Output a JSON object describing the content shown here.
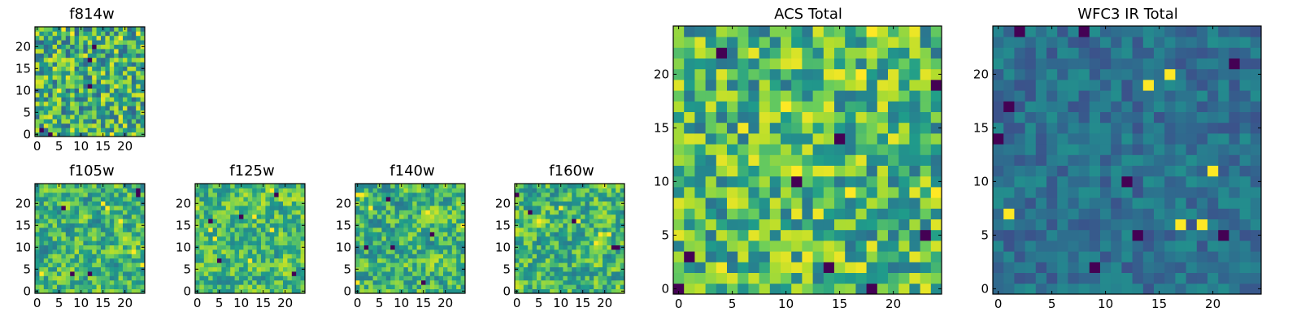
{
  "colormap": "viridis",
  "colors": {
    "dark": "#440154",
    "mid": "#21918c",
    "bright": "#fde725"
  },
  "chart_data": [
    {
      "id": "f814w",
      "type": "heatmap",
      "title": "f814w",
      "grid": [
        25,
        25
      ],
      "xlim": [
        0,
        24
      ],
      "ylim": [
        0,
        24
      ],
      "xticks": [
        0,
        5,
        10,
        15,
        20
      ],
      "yticks": [
        0,
        5,
        10,
        15,
        20
      ],
      "level": 0.66,
      "spread": 0.3,
      "seed": 814,
      "smooth": 0
    },
    {
      "id": "f105w",
      "type": "heatmap",
      "title": "f105w",
      "grid": [
        25,
        25
      ],
      "xlim": [
        0,
        24
      ],
      "ylim": [
        0,
        24
      ],
      "xticks": [
        0,
        5,
        10,
        15,
        20
      ],
      "yticks": [
        0,
        5,
        10,
        15,
        20
      ],
      "level": 0.68,
      "spread": 0.32,
      "seed": 105,
      "smooth": 1
    },
    {
      "id": "f125w",
      "type": "heatmap",
      "title": "f125w",
      "grid": [
        25,
        25
      ],
      "xlim": [
        0,
        24
      ],
      "ylim": [
        0,
        24
      ],
      "xticks": [
        0,
        5,
        10,
        15,
        20
      ],
      "yticks": [
        0,
        5,
        10,
        15,
        20
      ],
      "level": 0.7,
      "spread": 0.3,
      "seed": 125,
      "smooth": 1
    },
    {
      "id": "f140w",
      "type": "heatmap",
      "title": "f140w",
      "grid": [
        25,
        25
      ],
      "xlim": [
        0,
        24
      ],
      "ylim": [
        0,
        24
      ],
      "xticks": [
        0,
        5,
        10,
        15,
        20
      ],
      "yticks": [
        0,
        5,
        10,
        15,
        20
      ],
      "level": 0.68,
      "spread": 0.32,
      "seed": 140,
      "smooth": 1
    },
    {
      "id": "f160w",
      "type": "heatmap",
      "title": "f160w",
      "grid": [
        25,
        25
      ],
      "xlim": [
        0,
        24
      ],
      "ylim": [
        0,
        24
      ],
      "xticks": [
        0,
        5,
        10,
        15,
        20
      ],
      "yticks": [
        0,
        5,
        10,
        15,
        20
      ],
      "level": 0.68,
      "spread": 0.32,
      "seed": 160,
      "smooth": 1
    },
    {
      "id": "acs-total",
      "type": "heatmap",
      "title": "ACS Total",
      "grid": [
        25,
        25
      ],
      "xlim": [
        0,
        24
      ],
      "ylim": [
        0,
        24
      ],
      "xticks": [
        0,
        5,
        10,
        15,
        20
      ],
      "yticks": [
        0,
        5,
        10,
        15,
        20
      ],
      "level": 0.7,
      "spread": 0.28,
      "seed": 777,
      "smooth": 0
    },
    {
      "id": "wfc3-ir-total",
      "type": "heatmap",
      "title": "WFC3 IR Total",
      "grid": [
        25,
        25
      ],
      "xlim": [
        0,
        24
      ],
      "ylim": [
        0,
        24
      ],
      "xticks": [
        0,
        5,
        10,
        15,
        20
      ],
      "yticks": [
        0,
        5,
        10,
        15,
        20
      ],
      "level": 0.42,
      "spread": 0.14,
      "seed": 333,
      "smooth": 0
    }
  ]
}
